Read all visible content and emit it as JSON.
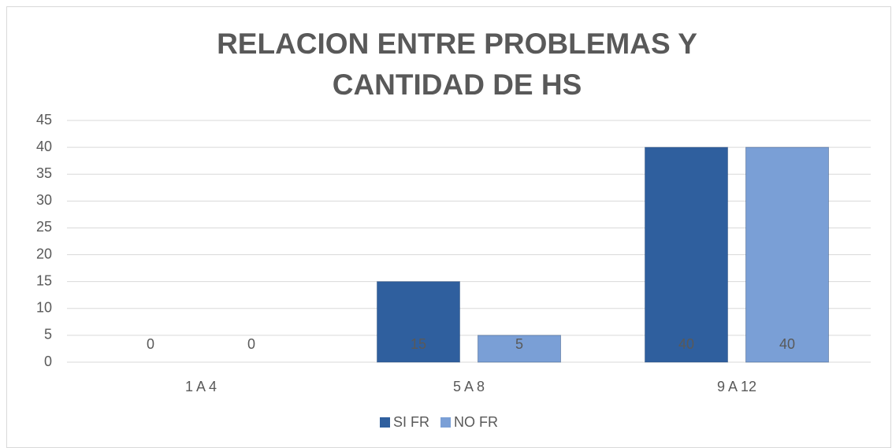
{
  "chart_data": {
    "type": "bar",
    "title": "RELACION ENTRE PROBLEMAS Y CANTIDAD DE HS",
    "categories": [
      "1 A 4",
      "5 A 8",
      "9 A 12"
    ],
    "series": [
      {
        "name": "SI FR",
        "color": "#2f5f9e",
        "values": [
          0,
          15,
          40
        ]
      },
      {
        "name": "NO FR",
        "color": "#7a9fd6",
        "values": [
          0,
          5,
          40
        ]
      }
    ],
    "ylim": [
      0,
      45
    ],
    "yticks": [
      0,
      5,
      10,
      15,
      20,
      25,
      30,
      35,
      40,
      45
    ],
    "grid": true,
    "legend": "bottom"
  }
}
